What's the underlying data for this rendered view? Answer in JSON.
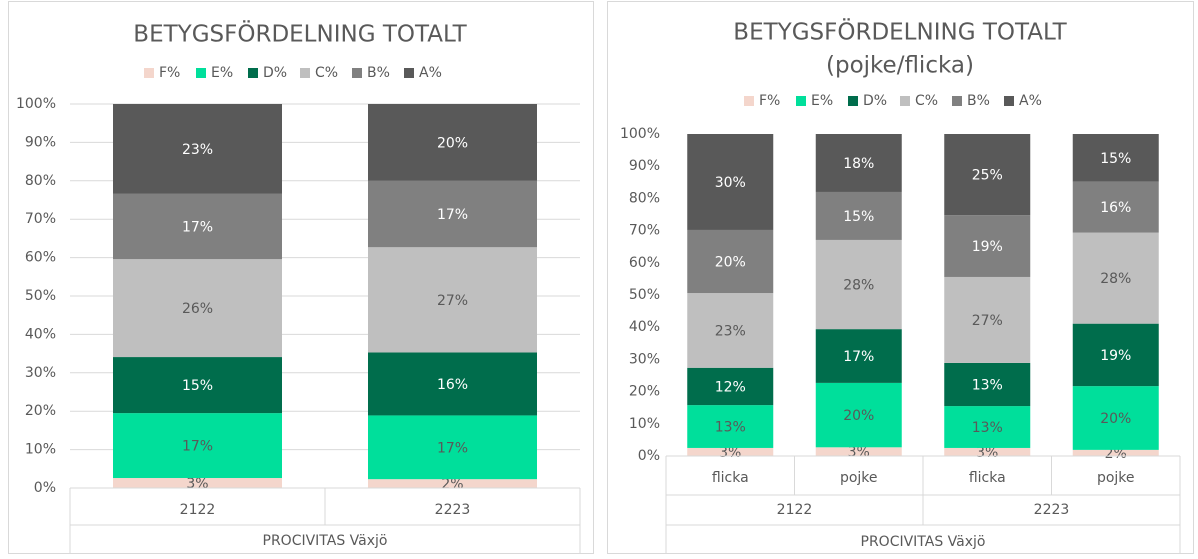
{
  "chart_data": [
    {
      "type": "stacked_bar",
      "title": "BETYGSFÖRDELNING TOTALT",
      "x_label": "PROCIVITAS Växjö",
      "categories": [
        "2122",
        "2223"
      ],
      "ylim": [
        0,
        100
      ],
      "yticks": [
        {
          "value": 0,
          "label": "0%"
        },
        {
          "value": 10,
          "label": "10%"
        },
        {
          "value": 20,
          "label": "20%"
        },
        {
          "value": 30,
          "label": "30%"
        },
        {
          "value": 40,
          "label": "40%"
        },
        {
          "value": 50,
          "label": "50%"
        },
        {
          "value": 60,
          "label": "60%"
        },
        {
          "value": 70,
          "label": "70%"
        },
        {
          "value": 80,
          "label": "80%"
        },
        {
          "value": 90,
          "label": "90%"
        },
        {
          "value": 100,
          "label": "100%"
        }
      ],
      "grid": true,
      "legend": "top",
      "series": [
        {
          "name": "F%",
          "color": "#f4d6cc",
          "values": [
            2.6,
            2.3
          ],
          "value_labels": [
            "3%",
            "2%"
          ]
        },
        {
          "name": "E%",
          "color": "#00df9b",
          "values": [
            16.9,
            16.6
          ],
          "value_labels": [
            "17%",
            "17%"
          ]
        },
        {
          "name": "D%",
          "color": "#006d4c",
          "values": [
            14.6,
            16.4
          ],
          "value_labels": [
            "15%",
            "16%"
          ]
        },
        {
          "name": "C%",
          "color": "#bfbfbf",
          "values": [
            25.5,
            27.4
          ],
          "value_labels": [
            "26%",
            "27%"
          ]
        },
        {
          "name": "B%",
          "color": "#808080",
          "values": [
            17.0,
            17.3
          ],
          "value_labels": [
            "17%",
            "17%"
          ]
        },
        {
          "name": "A%",
          "color": "#595959",
          "values": [
            23.4,
            20.0
          ],
          "value_labels": [
            "23%",
            "20%"
          ]
        }
      ]
    },
    {
      "type": "stacked_bar",
      "title": "BETYGSFÖRDELNING TOTALT",
      "subtitle": "(pojke/flicka)",
      "x_label": "PROCIVITAS Växjö",
      "categories": [
        "flicka",
        "pojke",
        "flicka",
        "pojke"
      ],
      "category_groups": [
        "2122",
        "2223"
      ],
      "ylim": [
        0,
        100
      ],
      "yticks": [
        {
          "value": 0,
          "label": "0%"
        },
        {
          "value": 10,
          "label": "10%"
        },
        {
          "value": 20,
          "label": "20%"
        },
        {
          "value": 30,
          "label": "30%"
        },
        {
          "value": 40,
          "label": "40%"
        },
        {
          "value": 50,
          "label": "50%"
        },
        {
          "value": 60,
          "label": "60%"
        },
        {
          "value": 70,
          "label": "70%"
        },
        {
          "value": 80,
          "label": "80%"
        },
        {
          "value": 90,
          "label": "90%"
        },
        {
          "value": 100,
          "label": "100%"
        }
      ],
      "grid": false,
      "legend": "top",
      "series": [
        {
          "name": "F%",
          "color": "#f4d6cc",
          "values": [
            2.5,
            2.7,
            2.5,
            1.9
          ],
          "value_labels": [
            "3%",
            "3%",
            "3%",
            "2%"
          ]
        },
        {
          "name": "E%",
          "color": "#00df9b",
          "values": [
            13.3,
            20.0,
            13.0,
            19.8
          ],
          "value_labels": [
            "13%",
            "20%",
            "13%",
            "20%"
          ]
        },
        {
          "name": "D%",
          "color": "#006d4c",
          "values": [
            11.6,
            16.7,
            13.4,
            19.4
          ],
          "value_labels": [
            "12%",
            "17%",
            "13%",
            "19%"
          ]
        },
        {
          "name": "C%",
          "color": "#bfbfbf",
          "values": [
            23.2,
            27.7,
            26.7,
            28.3
          ],
          "value_labels": [
            "23%",
            "28%",
            "27%",
            "28%"
          ]
        },
        {
          "name": "B%",
          "color": "#808080",
          "values": [
            19.6,
            14.9,
            19.2,
            15.8
          ],
          "value_labels": [
            "20%",
            "15%",
            "19%",
            "16%"
          ]
        },
        {
          "name": "A%",
          "color": "#595959",
          "values": [
            29.8,
            18.0,
            25.2,
            14.8
          ],
          "value_labels": [
            "30%",
            "18%",
            "25%",
            "15%"
          ]
        }
      ]
    }
  ]
}
